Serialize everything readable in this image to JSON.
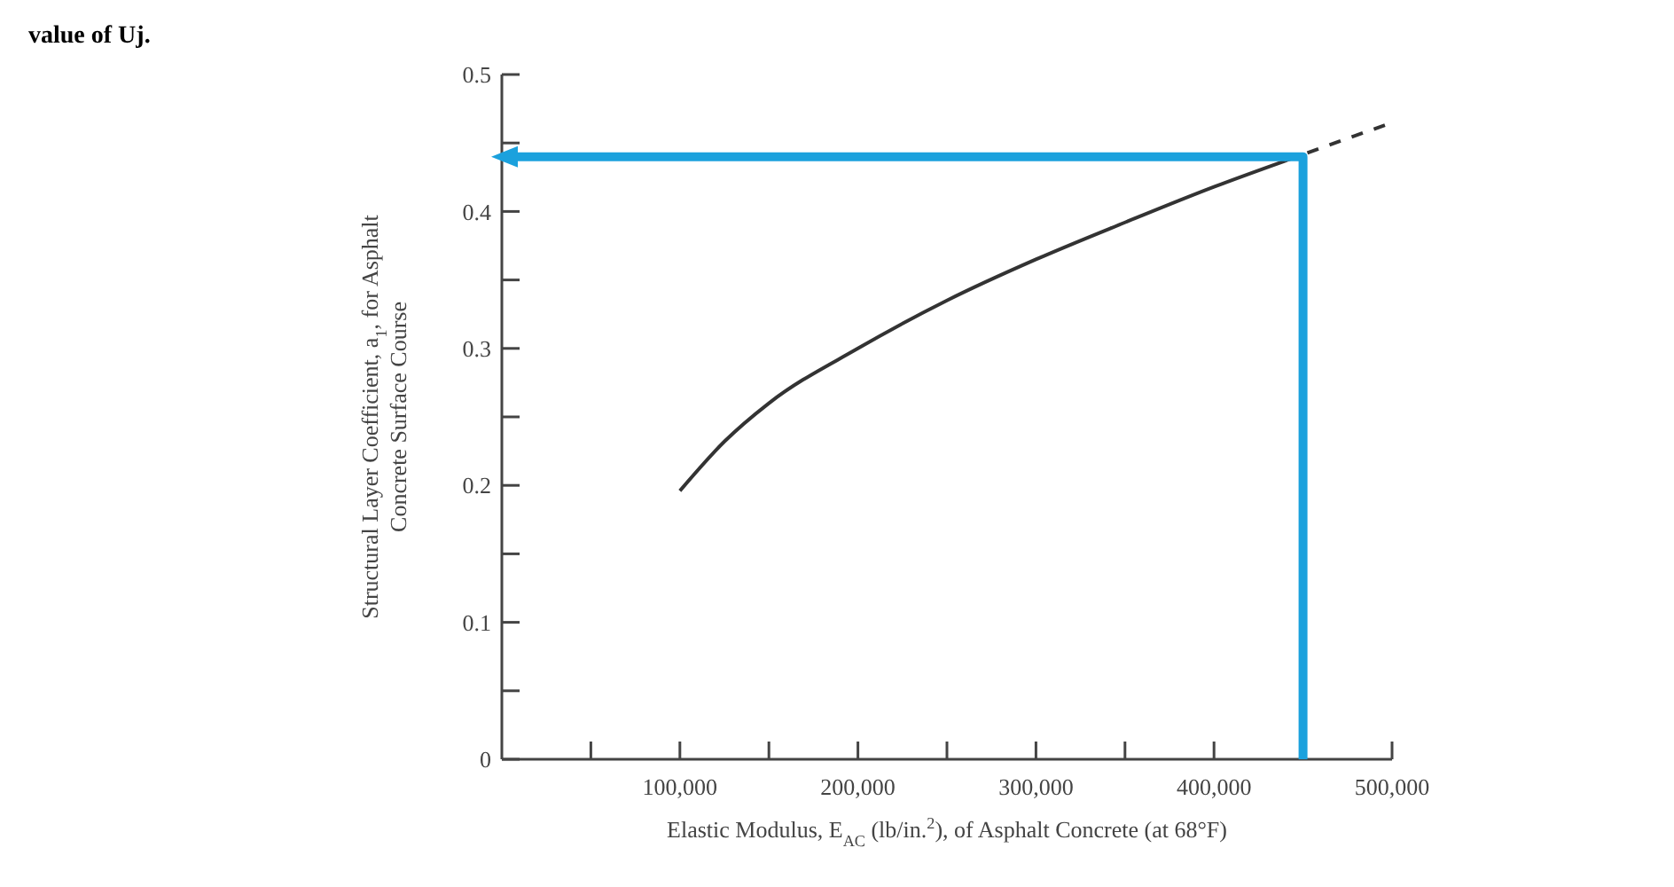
{
  "chart_data": {
    "type": "line",
    "xlabel": "Elastic Modulus, E$_{AC}$ (lb/in.$^{2}$), of Asphalt Concrete (at 68°F)",
    "ylabel": "Structural Layer Coefficient, a$_{1}$, for Asphalt Concrete Surface Course",
    "annotations": [
      "value of Uj."
    ],
    "xlim": [
      0,
      500000
    ],
    "ylim": [
      0,
      0.5
    ],
    "xticks": [
      {
        "value": 50000,
        "label": null
      },
      {
        "value": 100000,
        "label": "100,000"
      },
      {
        "value": 150000,
        "label": null
      },
      {
        "value": 200000,
        "label": "200,000"
      },
      {
        "value": 250000,
        "label": null
      },
      {
        "value": 300000,
        "label": "300,000"
      },
      {
        "value": 350000,
        "label": null
      },
      {
        "value": 400000,
        "label": "400,000"
      },
      {
        "value": 450000,
        "label": null
      },
      {
        "value": 500000,
        "label": "500,000"
      }
    ],
    "yticks": [
      0,
      {
        "value": 0.05,
        "label": null
      },
      0.1,
      {
        "value": 0.15,
        "label": null
      },
      0.2,
      {
        "value": 0.25,
        "label": null
      },
      0.3,
      {
        "value": 0.35,
        "label": null
      },
      0.4,
      {
        "value": 0.45,
        "label": null
      },
      0.5
    ],
    "grid": false,
    "marker": "none",
    "series": [
      {
        "color": "#333333",
        "line_style": "solid",
        "x": [
          100000,
          125000,
          150000,
          200000,
          250000,
          300000,
          350000,
          400000,
          440000
        ],
        "values": [
          0.196,
          0.232,
          0.26,
          0.3,
          0.335,
          0.365,
          0.392,
          0.418,
          0.437
        ]
      },
      {
        "color": "#333333",
        "line_style": "dashed",
        "x": [
          440000,
          470000,
          496000
        ],
        "values": [
          0.437,
          0.451,
          0.463
        ]
      },
      {
        "color": "#1ba1dd",
        "line_style": "solid",
        "x": [
          450000,
          450000,
          0
        ],
        "values": [
          0,
          0.44,
          0.44
        ]
      }
    ]
  }
}
